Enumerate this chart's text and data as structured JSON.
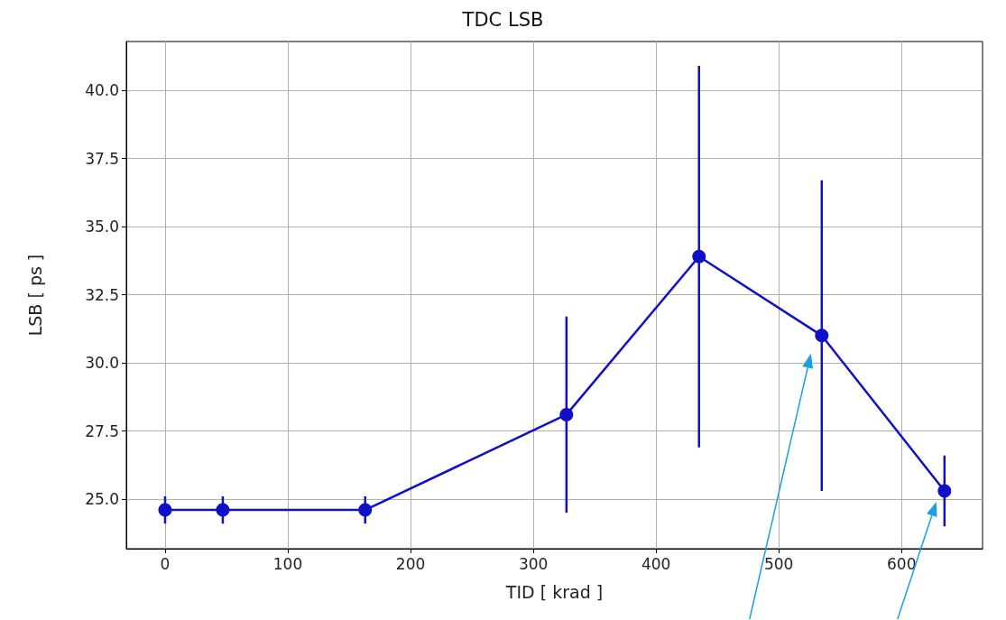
{
  "chart_data": {
    "type": "line",
    "title": "TDC LSB",
    "xlabel": "TID [ krad ]",
    "ylabel": "LSB [ ps ]",
    "x": [
      0,
      47,
      163,
      327,
      435,
      535,
      635
    ],
    "series": [
      {
        "color": "#1010c8",
        "values": [
          24.6,
          24.6,
          24.6,
          28.1,
          33.9,
          31.0,
          25.3
        ],
        "errors": [
          0.5,
          0.5,
          0.5,
          3.6,
          7.0,
          5.7,
          1.3
        ]
      }
    ],
    "xlim": [
      -31.6,
      666
    ],
    "xticks": [
      0,
      100,
      200,
      300,
      400,
      500,
      600
    ],
    "ylim": [
      23.18,
      41.79
    ],
    "yticks": [
      {
        "value": 25,
        "label": "25.0"
      },
      {
        "value": 27.5,
        "label": "27.5"
      },
      {
        "value": 30,
        "label": "30.0"
      },
      {
        "value": 32.5,
        "label": "32.5"
      },
      {
        "value": 35,
        "label": "35.0"
      },
      {
        "value": 37.5,
        "label": "37.5"
      },
      {
        "value": 40,
        "label": "40.0"
      }
    ],
    "grid": true,
    "marker": "circle",
    "line_style": "solid"
  }
}
